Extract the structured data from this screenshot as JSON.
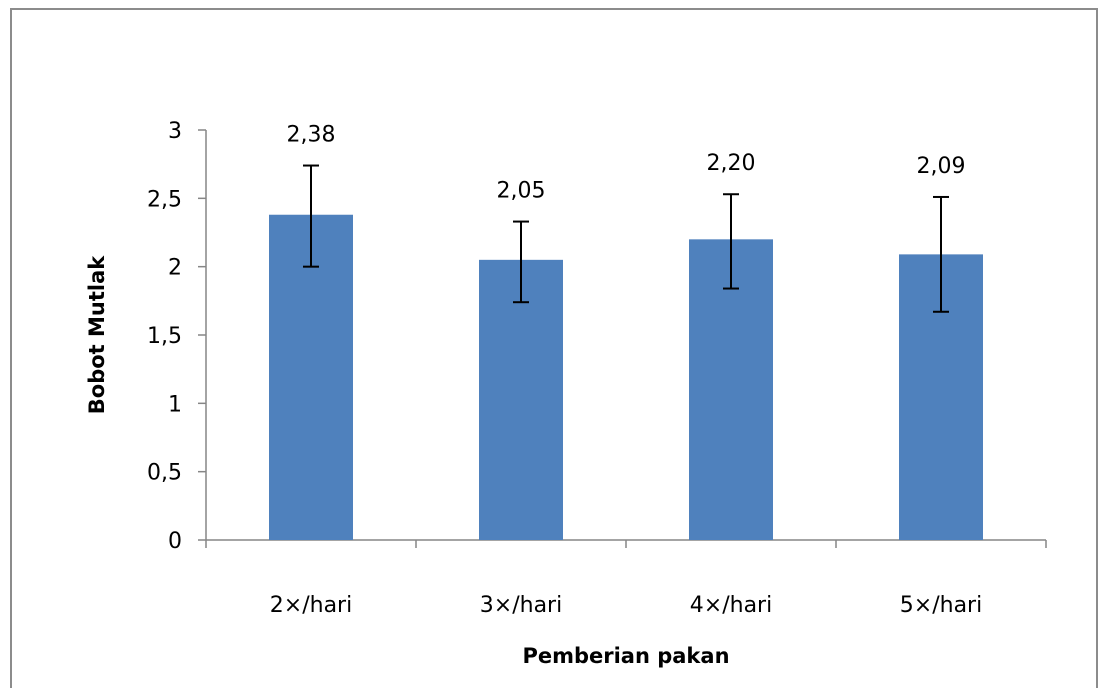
{
  "chart_data": {
    "type": "bar",
    "title": "",
    "xlabel": "Pemberian pakan",
    "ylabel": "Bobot Mutlak",
    "categories": [
      "2×/hari",
      "3×/hari",
      "4×/hari",
      "5×/hari"
    ],
    "values": [
      2.38,
      2.05,
      2.2,
      2.09
    ],
    "value_labels": [
      "2,38",
      "2,05",
      "2,20",
      "2,09"
    ],
    "error_bars": [
      {
        "low": 2.0,
        "high": 2.74
      },
      {
        "low": 1.74,
        "high": 2.33
      },
      {
        "low": 1.84,
        "high": 2.53
      },
      {
        "low": 1.67,
        "high": 2.51
      }
    ],
    "ylim": [
      0,
      3
    ],
    "yticks": [
      0,
      0.5,
      1,
      1.5,
      2,
      2.5,
      3
    ],
    "ytick_labels": [
      "0",
      "0,5",
      "1",
      "1,5",
      "2",
      "2,5",
      "3"
    ],
    "bar_color": "#4f81bd",
    "grid": false,
    "legend": "none"
  }
}
